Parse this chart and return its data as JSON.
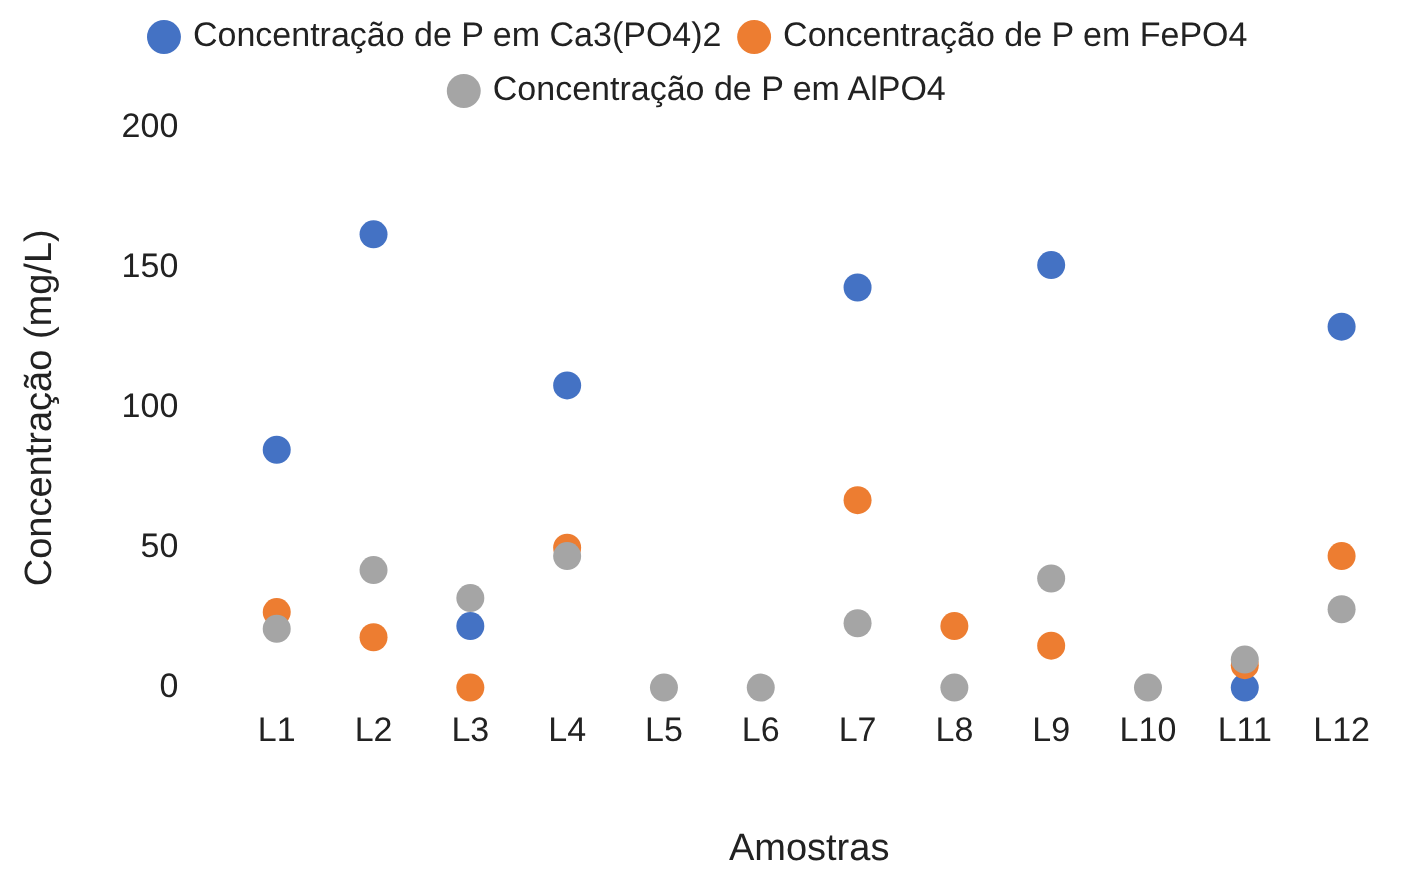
{
  "chart_data": {
    "type": "scatter",
    "xlabel": "Amostras",
    "ylabel": "Concentração (mg/L)",
    "categories": [
      "L1",
      "L2",
      "L3",
      "L4",
      "L5",
      "L6",
      "L7",
      "L8",
      "L9",
      "L10",
      "L11",
      "L12"
    ],
    "series": [
      {
        "name": "Concentração de P em Ca3(PO4)2",
        "color": "#4472c4",
        "values": [
          85,
          162,
          22,
          108,
          null,
          null,
          143,
          null,
          151,
          null,
          0,
          129
        ]
      },
      {
        "name": "Concentração de P em FePO4",
        "color": "#ed7d31",
        "values": [
          27,
          18,
          0,
          50,
          null,
          null,
          67,
          22,
          15,
          null,
          8,
          47
        ]
      },
      {
        "name": "Concentração de P em AlPO4",
        "color": "#a5a5a5",
        "values": [
          21,
          42,
          32,
          47,
          0,
          0,
          23,
          0,
          39,
          0,
          10,
          28
        ]
      }
    ],
    "ylim": [
      0,
      200
    ],
    "yticks": [
      0,
      50,
      100,
      150,
      200
    ],
    "grid": false,
    "legend": "top",
    "marker": "circle"
  }
}
